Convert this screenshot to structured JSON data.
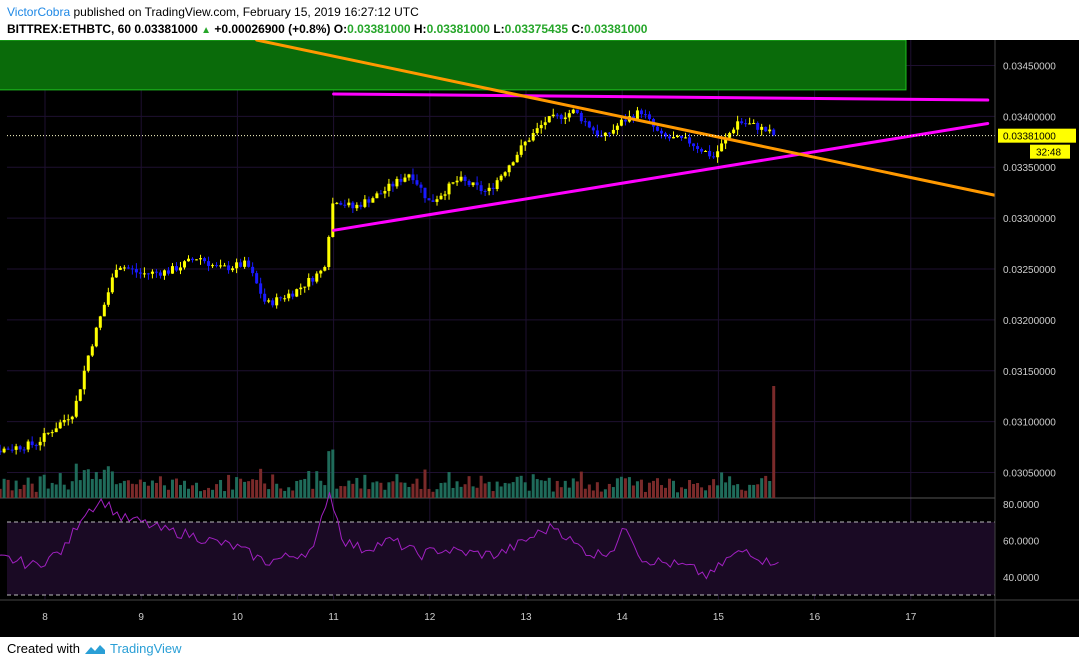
{
  "header": {
    "author": "VictorCobra",
    "published_text": "published on TradingView.com, February 15, 2019 16:27:12 UTC",
    "symbol": "BITTREX:ETHBTC, 60",
    "last": "0.03381000",
    "change": "+0.00026900 (+0.8%)",
    "o_label": "O:",
    "o_value": "0.03381000",
    "h_label": "H:",
    "h_value": "0.03381000",
    "l_label": "L:",
    "l_value": "0.03375435",
    "c_label": "C:",
    "c_value": "0.03381000"
  },
  "footer": {
    "created_with": "Created with",
    "brand": "TradingView"
  },
  "colors": {
    "background": "#000000",
    "bull_candle": "#ffff00",
    "bear_candle": "#1a1aff",
    "volume_up": "#1f6b5a",
    "volume_down": "#7a2a2a",
    "trendline_pink": "#ff00ff",
    "trendline_orange": "#ff9900",
    "zone": "#0a6b0a",
    "rsi_line": "#a020c0"
  },
  "chart_data": {
    "type": "candlestick",
    "timeframe": "60",
    "x_ticks": [
      "8",
      "9",
      "10",
      "11",
      "12",
      "13",
      "14",
      "15",
      "16",
      "17"
    ],
    "price_ticks": [
      "0.03450000",
      "0.03400000",
      "0.03350000",
      "0.03300000",
      "0.03250000",
      "0.03200000",
      "0.03150000",
      "0.03100000",
      "0.03050000"
    ],
    "price_range": [
      0.03025,
      0.03475
    ],
    "last_price_label": "0.03381000",
    "countdown": "32:48",
    "price_path": [
      [
        7.2,
        0.03075
      ],
      [
        7.5,
        0.03072
      ],
      [
        7.9,
        0.03078
      ],
      [
        8.3,
        0.0311
      ],
      [
        8.45,
        0.03165
      ],
      [
        8.6,
        0.0321
      ],
      [
        8.75,
        0.03255
      ],
      [
        9.0,
        0.03245
      ],
      [
        9.3,
        0.03248
      ],
      [
        9.6,
        0.03262
      ],
      [
        9.8,
        0.0325
      ],
      [
        10.1,
        0.03255
      ],
      [
        10.3,
        0.03215
      ],
      [
        10.6,
        0.03228
      ],
      [
        10.9,
        0.0325
      ],
      [
        11.0,
        0.0332
      ],
      [
        11.2,
        0.0331
      ],
      [
        11.5,
        0.03325
      ],
      [
        11.8,
        0.03345
      ],
      [
        12.0,
        0.03315
      ],
      [
        12.3,
        0.03338
      ],
      [
        12.6,
        0.03325
      ],
      [
        12.8,
        0.0335
      ],
      [
        13.0,
        0.03375
      ],
      [
        13.2,
        0.03395
      ],
      [
        13.5,
        0.03405
      ],
      [
        13.8,
        0.03378
      ],
      [
        14.0,
        0.03395
      ],
      [
        14.2,
        0.03405
      ],
      [
        14.4,
        0.0338
      ],
      [
        14.7,
        0.03375
      ],
      [
        14.95,
        0.0336
      ],
      [
        15.2,
        0.03395
      ],
      [
        15.4,
        0.0339
      ],
      [
        15.6,
        0.03381
      ]
    ],
    "trendlines": [
      {
        "name": "resistance",
        "color": "pink",
        "from": [
          11.0,
          0.03422
        ],
        "to": [
          17.8,
          0.03416
        ]
      },
      {
        "name": "support",
        "color": "pink",
        "from": [
          11.0,
          0.03288
        ],
        "to": [
          17.8,
          0.03393
        ]
      },
      {
        "name": "descending",
        "color": "orange",
        "from": [
          10.2,
          0.03475
        ],
        "to": [
          17.9,
          0.03322
        ]
      }
    ],
    "zone": {
      "from_x": 7.0,
      "to_x": 16.95,
      "price_from": 0.03426,
      "price_to": 0.03475
    },
    "volume": {
      "max_at_x": 15.6
    },
    "rsi": {
      "ticks": [
        "80.0000",
        "60.0000",
        "40.0000"
      ],
      "bands": [
        70,
        30
      ],
      "path": [
        [
          7.0,
          52
        ],
        [
          7.3,
          48
        ],
        [
          7.6,
          50
        ],
        [
          7.9,
          46
        ],
        [
          8.2,
          55
        ],
        [
          8.4,
          75
        ],
        [
          8.6,
          82
        ],
        [
          8.8,
          72
        ],
        [
          9.0,
          70
        ],
        [
          9.2,
          66
        ],
        [
          9.5,
          63
        ],
        [
          9.7,
          60
        ],
        [
          10.0,
          56
        ],
        [
          10.3,
          48
        ],
        [
          10.6,
          52
        ],
        [
          10.8,
          55
        ],
        [
          10.95,
          88
        ],
        [
          11.1,
          60
        ],
        [
          11.3,
          55
        ],
        [
          11.6,
          60
        ],
        [
          11.9,
          52
        ],
        [
          12.1,
          55
        ],
        [
          12.4,
          53
        ],
        [
          12.7,
          52
        ],
        [
          12.9,
          57
        ],
        [
          13.1,
          63
        ],
        [
          13.3,
          68
        ],
        [
          13.5,
          58
        ],
        [
          13.7,
          52
        ],
        [
          13.9,
          55
        ],
        [
          14.05,
          68
        ],
        [
          14.2,
          50
        ],
        [
          14.5,
          47
        ],
        [
          14.7,
          45
        ],
        [
          14.9,
          40
        ],
        [
          15.1,
          50
        ],
        [
          15.3,
          55
        ],
        [
          15.5,
          48
        ],
        [
          15.65,
          50
        ]
      ]
    }
  }
}
